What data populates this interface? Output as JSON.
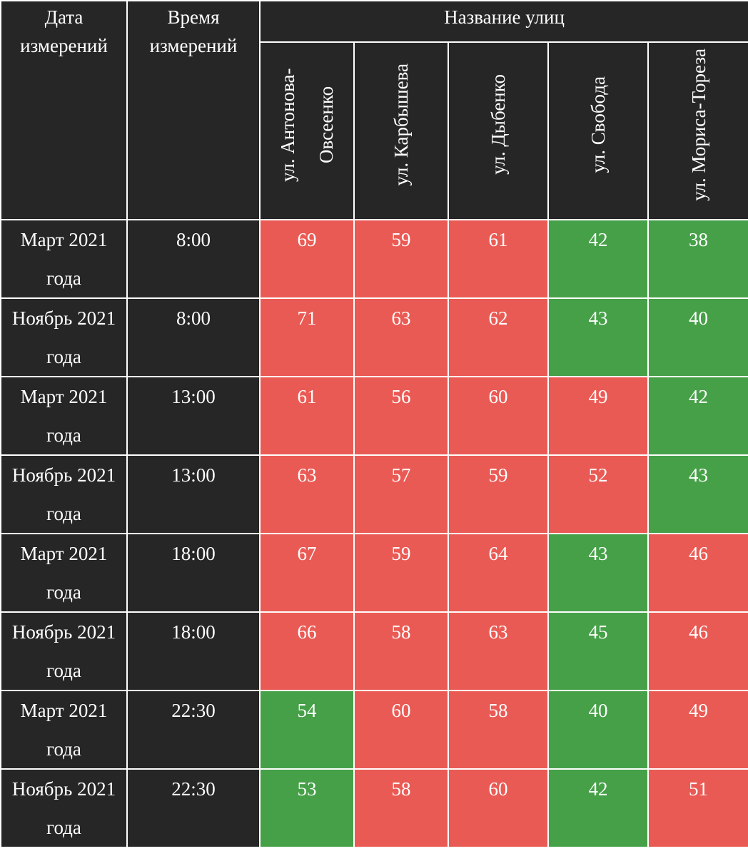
{
  "header": {
    "date_label": "Дата измерений",
    "time_label": "Время измерений",
    "streets_label": "Название улиц",
    "streets": [
      "ул. Антонова-Овсеенко",
      "ул. Карбышева",
      "ул. Дыбенко",
      "ул. Свобода",
      "ул. Мориса-Тореза"
    ]
  },
  "colors": {
    "high": "#ea5a54",
    "low": "#46a048",
    "dark": "#262626"
  },
  "rows": [
    {
      "date": "Март 2021 года",
      "time": "8:00",
      "values": [
        {
          "v": "69",
          "c": "red"
        },
        {
          "v": "59",
          "c": "red"
        },
        {
          "v": "61",
          "c": "red"
        },
        {
          "v": "42",
          "c": "green"
        },
        {
          "v": "38",
          "c": "green"
        }
      ]
    },
    {
      "date": "Ноябрь 2021 года",
      "time": "8:00",
      "values": [
        {
          "v": "71",
          "c": "red"
        },
        {
          "v": "63",
          "c": "red"
        },
        {
          "v": "62",
          "c": "red"
        },
        {
          "v": "43",
          "c": "green"
        },
        {
          "v": "40",
          "c": "green"
        }
      ]
    },
    {
      "date": "Март 2021 года",
      "time": "13:00",
      "values": [
        {
          "v": "61",
          "c": "red"
        },
        {
          "v": "56",
          "c": "red"
        },
        {
          "v": "60",
          "c": "red"
        },
        {
          "v": "49",
          "c": "red"
        },
        {
          "v": "42",
          "c": "green"
        }
      ]
    },
    {
      "date": "Ноябрь 2021 года",
      "time": "13:00",
      "values": [
        {
          "v": "63",
          "c": "red"
        },
        {
          "v": "57",
          "c": "red"
        },
        {
          "v": "59",
          "c": "red"
        },
        {
          "v": "52",
          "c": "red"
        },
        {
          "v": "43",
          "c": "green"
        }
      ]
    },
    {
      "date": "Март 2021 года",
      "time": "18:00",
      "values": [
        {
          "v": "67",
          "c": "red"
        },
        {
          "v": "59",
          "c": "red"
        },
        {
          "v": "64",
          "c": "red"
        },
        {
          "v": "43",
          "c": "green"
        },
        {
          "v": "46",
          "c": "red"
        }
      ]
    },
    {
      "date": "Ноябрь 2021 года",
      "time": "18:00",
      "values": [
        {
          "v": "66",
          "c": "red"
        },
        {
          "v": "58",
          "c": "red"
        },
        {
          "v": "63",
          "c": "red"
        },
        {
          "v": "45",
          "c": "green"
        },
        {
          "v": "46",
          "c": "red"
        }
      ]
    },
    {
      "date": "Март 2021 года",
      "time": "22:30",
      "values": [
        {
          "v": "54",
          "c": "green"
        },
        {
          "v": "60",
          "c": "red"
        },
        {
          "v": "58",
          "c": "red"
        },
        {
          "v": "40",
          "c": "green"
        },
        {
          "v": "49",
          "c": "red"
        }
      ]
    },
    {
      "date": "Ноябрь 2021 года",
      "time": "22:30",
      "values": [
        {
          "v": "53",
          "c": "green"
        },
        {
          "v": "58",
          "c": "red"
        },
        {
          "v": "60",
          "c": "red"
        },
        {
          "v": "42",
          "c": "green"
        },
        {
          "v": "51",
          "c": "red"
        }
      ]
    }
  ]
}
